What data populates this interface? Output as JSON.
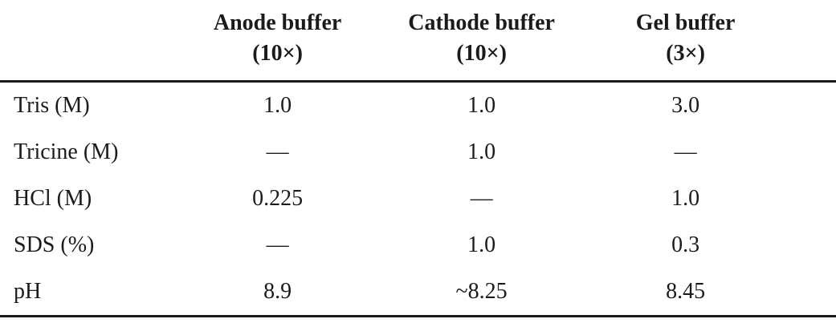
{
  "table": {
    "columns": [
      {
        "line1": "Anode buffer",
        "line2": "(10×)"
      },
      {
        "line1": "Cathode buffer",
        "line2": "(10×)"
      },
      {
        "line1": "Gel buffer",
        "line2": "(3×)"
      }
    ],
    "rows": [
      {
        "label": "Tris (M)",
        "values": [
          "1.0",
          "1.0",
          "3.0"
        ]
      },
      {
        "label": "Tricine (M)",
        "values": [
          "—",
          "1.0",
          "—"
        ]
      },
      {
        "label": "HCl (M)",
        "values": [
          "0.225",
          "—",
          "1.0"
        ]
      },
      {
        "label": "SDS (%)",
        "values": [
          "—",
          "1.0",
          "0.3"
        ]
      },
      {
        "label": "pH",
        "values": [
          "8.9",
          "~8.25",
          "8.45"
        ]
      }
    ],
    "colors": {
      "text": "#1b1b1b",
      "rule": "#1a1a1a",
      "background": "#ffffff"
    }
  }
}
